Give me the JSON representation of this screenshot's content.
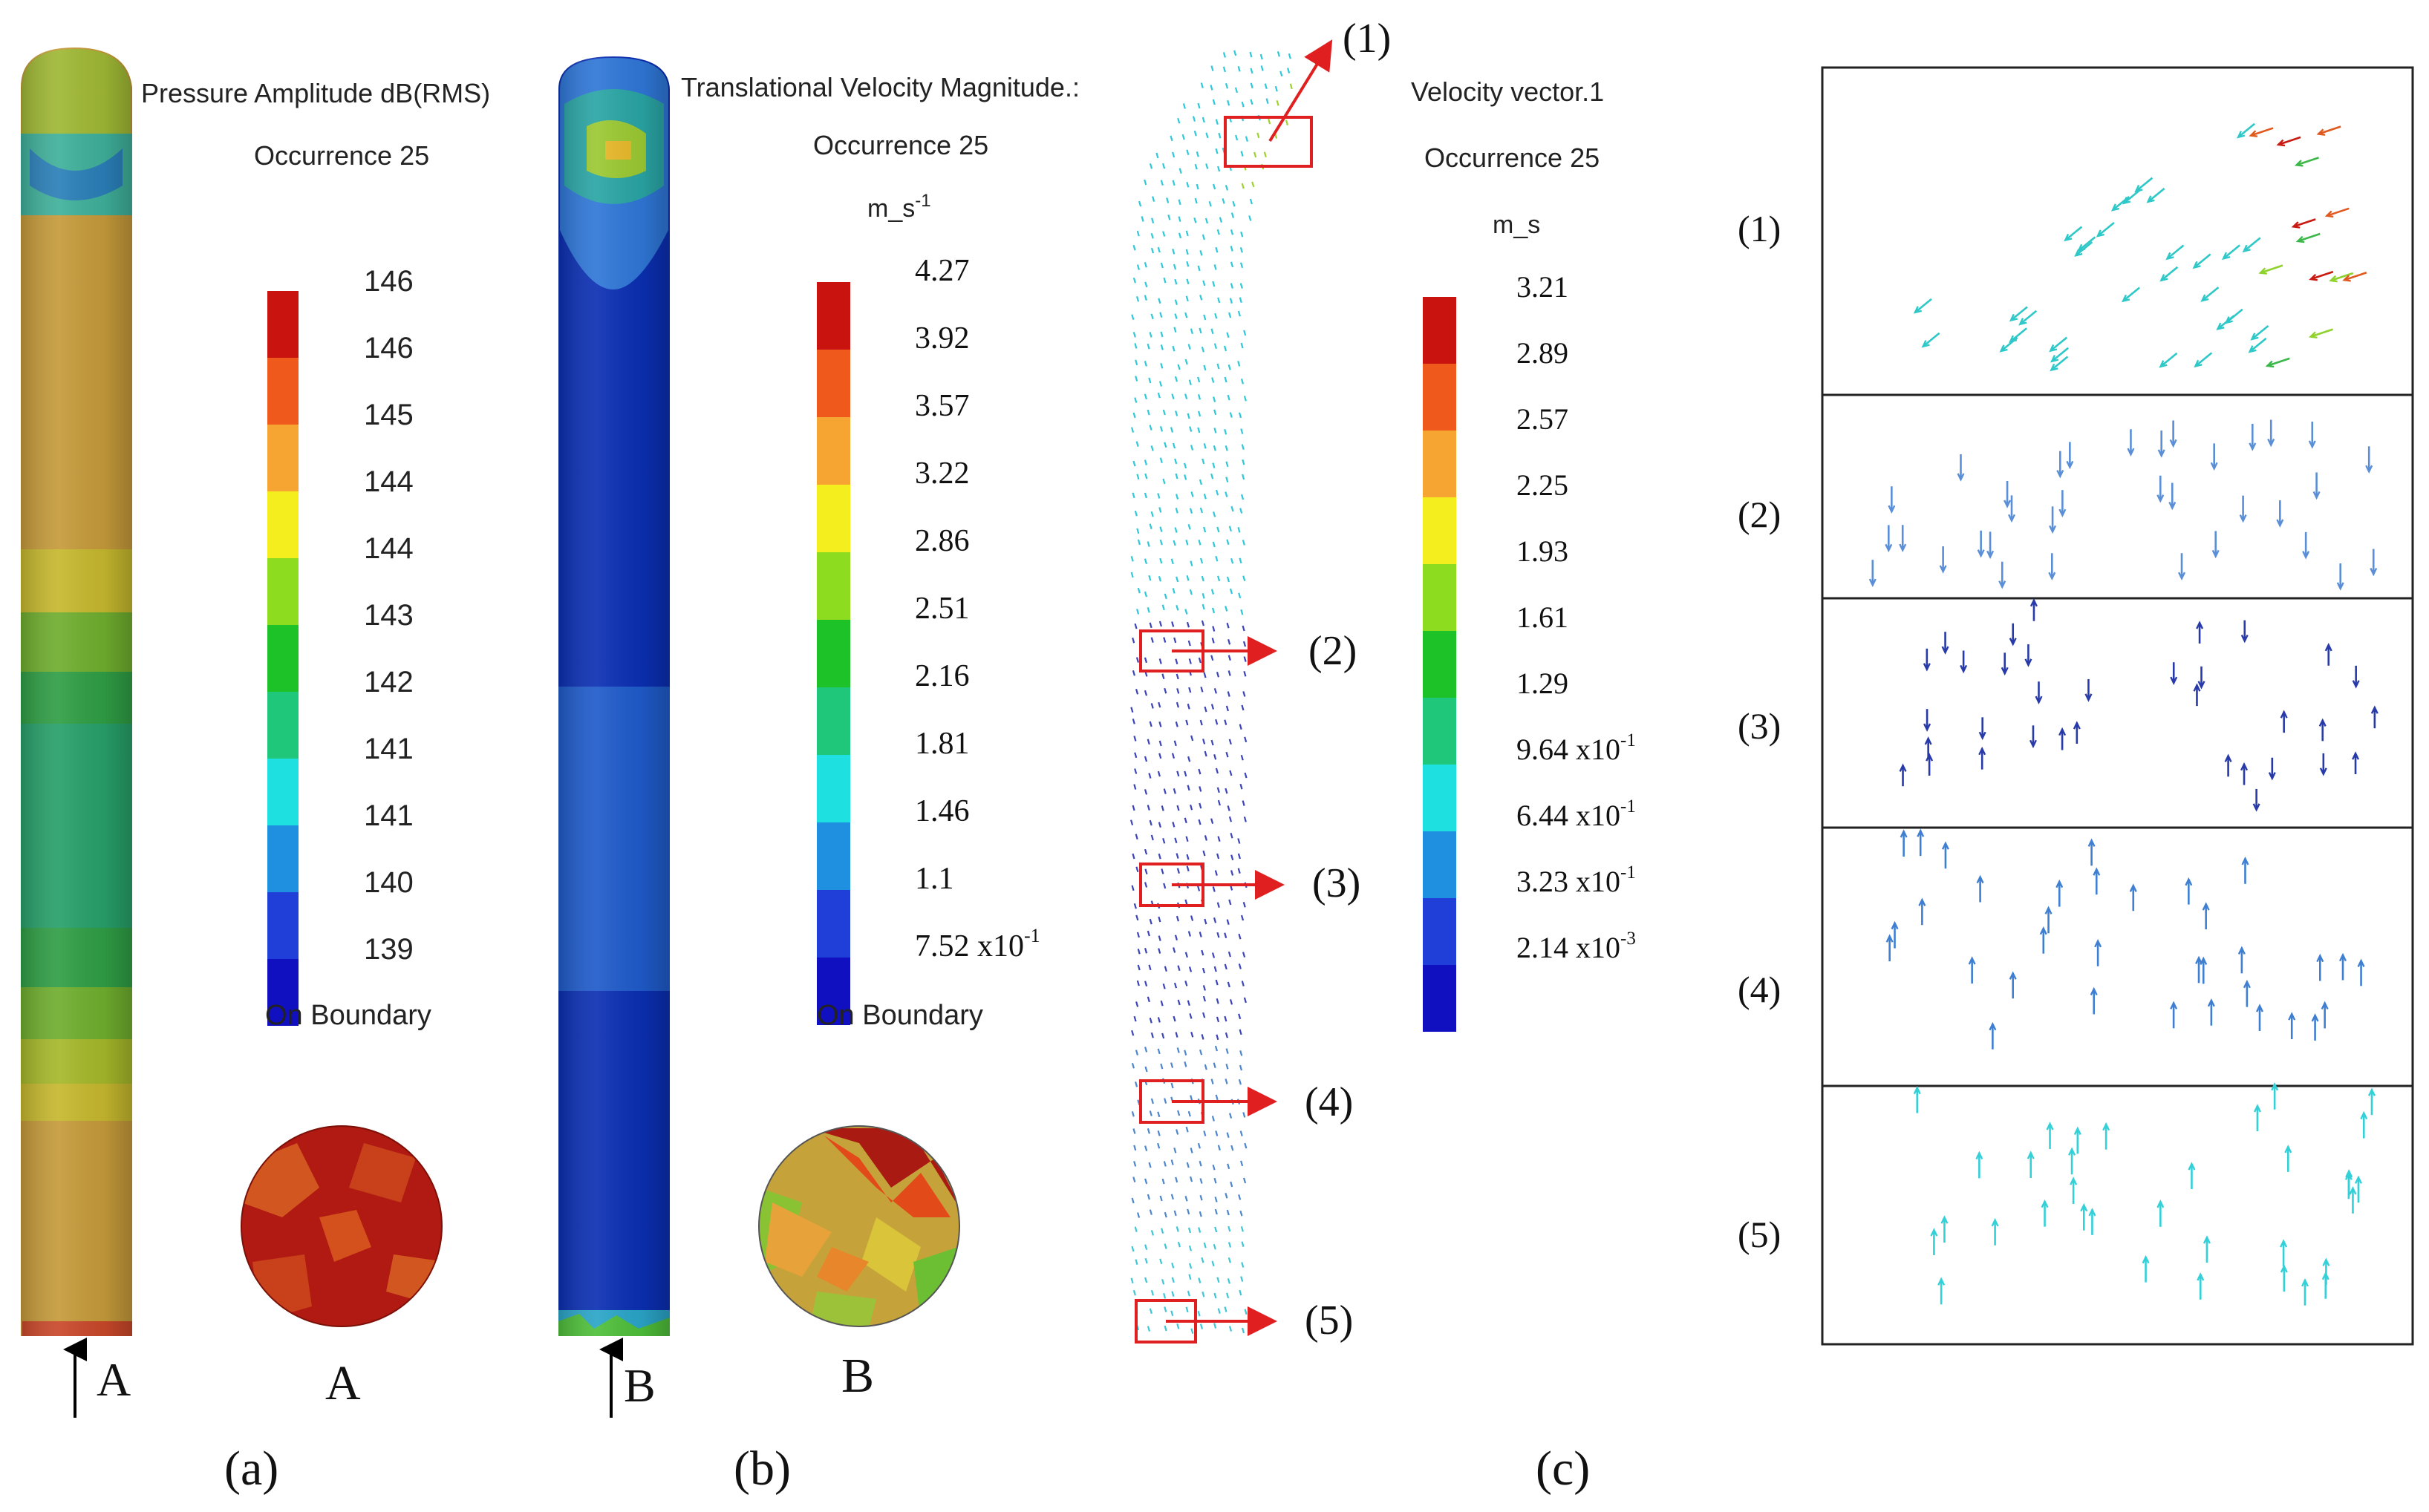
{
  "panel_a": {
    "title": "Pressure Amplitude dB(RMS)",
    "occurrence": "Occurrence 25",
    "scale_labels": [
      "146",
      "146",
      "145",
      "144",
      "144",
      "143",
      "142",
      "141",
      "141",
      "140",
      "139"
    ],
    "footer": "On Boundary",
    "section_letter": "A",
    "arrow_letter": "A",
    "caption": "(a)"
  },
  "panel_b": {
    "title": "Translational Velocity Magnitude.:",
    "occurrence": "Occurrence 25",
    "unit": "m_s",
    "unit_sup": "-1",
    "scale_labels": [
      "4.27",
      "3.92",
      "3.57",
      "3.22",
      "2.86",
      "2.51",
      "2.16",
      "1.81",
      "1.46",
      "1.1",
      "7.52 x10"
    ],
    "last_label_exp": "-1",
    "footer": "On Boundary",
    "section_letter": "B",
    "arrow_letter": "B",
    "caption": "(b)"
  },
  "panel_c": {
    "title": "Velocity vector.1",
    "occurrence": "Occurrence 25",
    "unit": "m_s",
    "scale_labels": [
      "3.21",
      "2.89",
      "2.57",
      "2.25",
      "1.93",
      "1.61",
      "1.29",
      "9.64 x10",
      "6.44 x10",
      "3.23 x10",
      "2.14 x10"
    ],
    "scale_exps": [
      "",
      "",
      "",
      "",
      "",
      "",
      "",
      "-1",
      "-1",
      "-1",
      "-3"
    ],
    "callouts": [
      "(1)",
      "(2)",
      "(3)",
      "(4)",
      "(5)"
    ],
    "caption": "(c)"
  },
  "zoom_panels": {
    "labels": [
      "(1)",
      "(2)",
      "(3)",
      "(4)",
      "(5)"
    ]
  },
  "colors": {
    "scale": [
      "#c8130f",
      "#ef5a1c",
      "#f7a532",
      "#f4ee1e",
      "#8ddc1f",
      "#1dc228",
      "#1fc77a",
      "#1fe0e0",
      "#1f8fe0",
      "#1f3fd8",
      "#1010c0"
    ],
    "callout_red": "#e02020"
  }
}
